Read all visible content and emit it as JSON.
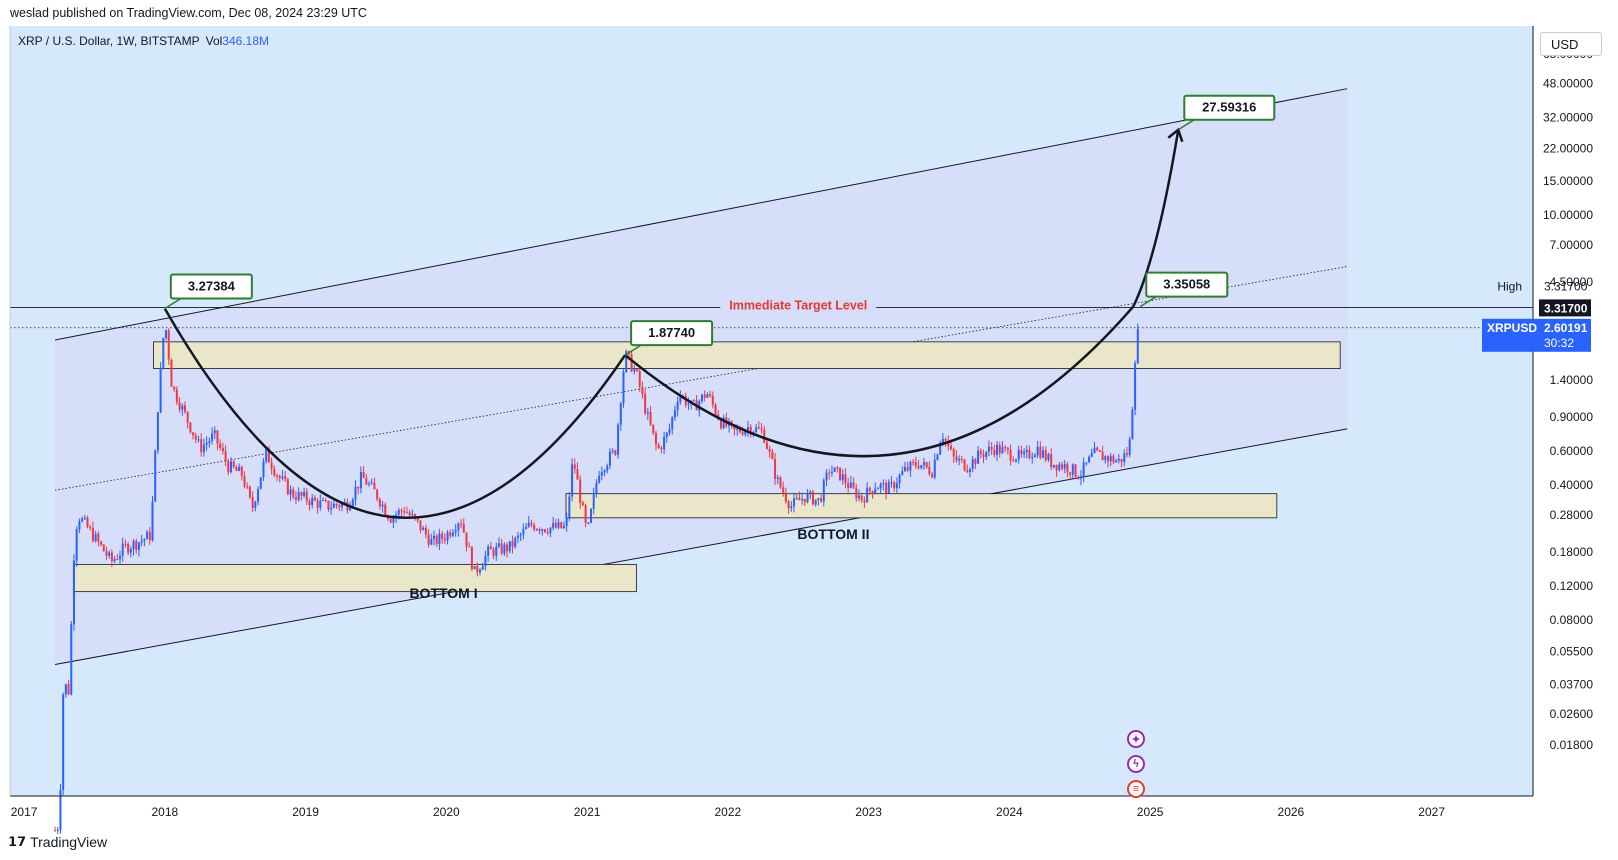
{
  "publisher_line": "weslad published on TradingView.com, Dec 08, 2024 23:29 UTC",
  "footer_brand": "TradingView",
  "currency_button": "USD",
  "colors": {
    "chart_bg": "#d6e8fb",
    "channel_fill": "#d7dcf9",
    "zone_fill": "#e9e6c9",
    "up_candle": "#2962ff",
    "down_candle": "#f23645",
    "label_border": "#2e7d32",
    "target_text": "#e53935",
    "price_tag_bg": "#2962ff",
    "line": "#131722"
  },
  "chart_data": {
    "type": "candlestick",
    "symbol_line": "XRP / U.S. Dollar, 1W, BITSTAMP",
    "vol_label": "Vol",
    "vol_value": "346.18M",
    "y_scale": "log",
    "ylim": [
      0.0098,
      95
    ],
    "xlim": [
      2016.9,
      2027.72
    ],
    "x_ticks": [
      "2017",
      "2018",
      "2019",
      "2020",
      "2021",
      "2022",
      "2023",
      "2024",
      "2025",
      "2026",
      "2027"
    ],
    "y_ticks": [
      "68.00000",
      "48.00000",
      "32.00000",
      "22.00000",
      "15.00000",
      "10.00000",
      "7.00000",
      "4.50000",
      "1.40000",
      "0.90000",
      "0.60000",
      "0.40000",
      "0.28000",
      "0.18000",
      "0.12000",
      "0.08000",
      "0.05500",
      "0.03700",
      "0.02600",
      "0.01800"
    ],
    "price_path": [
      [
        2017.22,
        0.0065
      ],
      [
        2017.25,
        0.007
      ],
      [
        2017.28,
        0.038
      ],
      [
        2017.32,
        0.034
      ],
      [
        2017.35,
        0.16
      ],
      [
        2017.38,
        0.28
      ],
      [
        2017.45,
        0.24
      ],
      [
        2017.55,
        0.19
      ],
      [
        2017.62,
        0.16
      ],
      [
        2017.72,
        0.19
      ],
      [
        2017.8,
        0.2
      ],
      [
        2017.9,
        0.22
      ],
      [
        2017.95,
        1.0
      ],
      [
        2018.0,
        2.9
      ],
      [
        2018.05,
        1.3
      ],
      [
        2018.15,
        0.9
      ],
      [
        2018.25,
        0.62
      ],
      [
        2018.35,
        0.72
      ],
      [
        2018.45,
        0.5
      ],
      [
        2018.55,
        0.45
      ],
      [
        2018.62,
        0.3
      ],
      [
        2018.72,
        0.58
      ],
      [
        2018.8,
        0.45
      ],
      [
        2018.9,
        0.36
      ],
      [
        2019.0,
        0.34
      ],
      [
        2019.15,
        0.31
      ],
      [
        2019.3,
        0.32
      ],
      [
        2019.4,
        0.44
      ],
      [
        2019.5,
        0.36
      ],
      [
        2019.6,
        0.27
      ],
      [
        2019.7,
        0.3
      ],
      [
        2019.8,
        0.25
      ],
      [
        2019.9,
        0.2
      ],
      [
        2020.0,
        0.22
      ],
      [
        2020.1,
        0.27
      ],
      [
        2020.2,
        0.14
      ],
      [
        2020.3,
        0.18
      ],
      [
        2020.45,
        0.19
      ],
      [
        2020.6,
        0.25
      ],
      [
        2020.7,
        0.24
      ],
      [
        2020.85,
        0.24
      ],
      [
        2020.9,
        0.55
      ],
      [
        2021.0,
        0.22
      ],
      [
        2021.08,
        0.47
      ],
      [
        2021.2,
        0.6
      ],
      [
        2021.27,
        1.9
      ],
      [
        2021.35,
        1.5
      ],
      [
        2021.42,
        0.95
      ],
      [
        2021.5,
        0.6
      ],
      [
        2021.58,
        0.75
      ],
      [
        2021.65,
        1.2
      ],
      [
        2021.75,
        1.0
      ],
      [
        2021.85,
        1.2
      ],
      [
        2021.95,
        0.85
      ],
      [
        2022.05,
        0.75
      ],
      [
        2022.15,
        0.8
      ],
      [
        2022.25,
        0.75
      ],
      [
        2022.35,
        0.42
      ],
      [
        2022.45,
        0.31
      ],
      [
        2022.55,
        0.35
      ],
      [
        2022.65,
        0.33
      ],
      [
        2022.72,
        0.48
      ],
      [
        2022.8,
        0.45
      ],
      [
        2022.88,
        0.38
      ],
      [
        2022.95,
        0.34
      ],
      [
        2023.05,
        0.4
      ],
      [
        2023.15,
        0.38
      ],
      [
        2023.25,
        0.47
      ],
      [
        2023.35,
        0.52
      ],
      [
        2023.45,
        0.47
      ],
      [
        2023.52,
        0.75
      ],
      [
        2023.6,
        0.55
      ],
      [
        2023.7,
        0.5
      ],
      [
        2023.8,
        0.58
      ],
      [
        2023.9,
        0.62
      ],
      [
        2024.0,
        0.58
      ],
      [
        2024.1,
        0.55
      ],
      [
        2024.2,
        0.62
      ],
      [
        2024.3,
        0.52
      ],
      [
        2024.4,
        0.5
      ],
      [
        2024.5,
        0.45
      ],
      [
        2024.6,
        0.58
      ],
      [
        2024.7,
        0.55
      ],
      [
        2024.78,
        0.53
      ],
      [
        2024.85,
        0.6
      ],
      [
        2024.88,
        1.2
      ],
      [
        2024.9,
        2.3
      ],
      [
        2024.93,
        2.6
      ]
    ],
    "last_price": {
      "label": "XRPUSD",
      "value": "2.60191",
      "countdown": "30:32",
      "y": 2.60191
    },
    "high_marker": {
      "label": "High",
      "value": "3.31700",
      "y": 3.317
    },
    "price_labels": [
      {
        "text": "3.27384",
        "x": 2018.0,
        "y": 3.27384
      },
      {
        "text": "1.87740",
        "x": 2021.27,
        "y": 1.8774
      },
      {
        "text": "3.35058",
        "x": 2024.93,
        "y": 3.35058
      },
      {
        "text": "27.59316",
        "x": 2025.2,
        "y": 27.59316
      }
    ],
    "annotations": [
      {
        "text": "Immediate Target Level",
        "x": 2022.5,
        "y": 3.317
      },
      {
        "text": "BOTTOM I",
        "x": 2019.98,
        "y": 0.104
      },
      {
        "text": "BOTTOM II",
        "x": 2022.75,
        "y": 0.21
      }
    ],
    "channel_top": [
      [
        2017.22,
        2.25
      ],
      [
        2026.4,
        45
      ]
    ],
    "channel_bottom": [
      [
        2017.22,
        0.047
      ],
      [
        2026.4,
        0.78
      ]
    ],
    "channel_mid": [
      [
        2017.22,
        0.375
      ],
      [
        2026.4,
        5.4
      ]
    ],
    "zones": [
      {
        "x0": 2017.92,
        "x1": 2026.35,
        "y0": 1.6,
        "y1": 2.2
      },
      {
        "x0": 2017.35,
        "x1": 2021.35,
        "y0": 0.112,
        "y1": 0.155
      },
      {
        "x0": 2020.85,
        "x1": 2025.9,
        "y0": 0.27,
        "y1": 0.36
      }
    ],
    "cup_curves": [
      {
        "from": [
          2018.0,
          3.27
        ],
        "ctrl": [
          2019.6,
          0.03
        ],
        "to": [
          2021.27,
          1.88
        ]
      },
      {
        "from": [
          2021.27,
          1.88
        ],
        "ctrl": [
          2023.2,
          0.13
        ],
        "to": [
          2024.88,
          3.35
        ]
      }
    ],
    "projection": {
      "from": [
        2024.88,
        3.35
      ],
      "ctrl": [
        2025.05,
        6.0
      ],
      "to": [
        2025.2,
        27.59
      ]
    }
  }
}
